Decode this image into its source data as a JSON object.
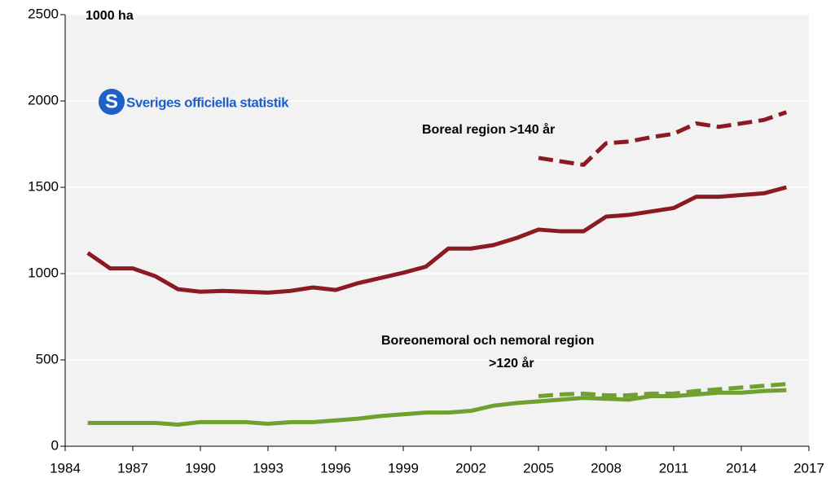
{
  "chart_data": {
    "type": "line",
    "unit_label": "1000 ha",
    "logo_text": "Sveriges officiella statistik",
    "x": [
      1985,
      1986,
      1987,
      1988,
      1989,
      1990,
      1991,
      1992,
      1993,
      1994,
      1995,
      1996,
      1997,
      1998,
      1999,
      2000,
      2001,
      2002,
      2003,
      2004,
      2005,
      2006,
      2007,
      2008,
      2009,
      2010,
      2011,
      2012,
      2013,
      2014,
      2015,
      2016
    ],
    "series": [
      {
        "color": "#8b1a24",
        "dash": false,
        "values": [
          1120,
          1030,
          1030,
          985,
          910,
          895,
          900,
          895,
          890,
          900,
          920,
          905,
          945,
          975,
          1005,
          1040,
          1145,
          1145,
          1165,
          1205,
          1255,
          1245,
          1245,
          1330,
          1340,
          1360,
          1380,
          1445,
          1445,
          1455,
          1465,
          1500
        ]
      },
      {
        "color": "#8b1a24",
        "dash": true,
        "values": [
          null,
          null,
          null,
          null,
          null,
          null,
          null,
          null,
          null,
          null,
          null,
          null,
          null,
          null,
          null,
          null,
          null,
          null,
          null,
          null,
          1670,
          1650,
          1630,
          1755,
          1765,
          1790,
          1810,
          1870,
          1850,
          1870,
          1890,
          1935
        ]
      },
      {
        "color": "#6fa030",
        "dash": false,
        "values": [
          135,
          135,
          135,
          135,
          125,
          140,
          140,
          140,
          130,
          140,
          140,
          150,
          160,
          175,
          185,
          195,
          195,
          205,
          235,
          250,
          260,
          270,
          280,
          275,
          270,
          290,
          290,
          300,
          310,
          310,
          320,
          325
        ]
      },
      {
        "color": "#6fa030",
        "dash": true,
        "values": [
          null,
          null,
          null,
          null,
          null,
          null,
          null,
          null,
          null,
          null,
          null,
          null,
          null,
          null,
          null,
          null,
          null,
          null,
          null,
          null,
          290,
          300,
          305,
          295,
          295,
          305,
          305,
          320,
          330,
          340,
          350,
          360
        ]
      }
    ],
    "annotations": [
      "Boreal region >140 år",
      "Boreonemoral och nemoral region",
      ">120 år"
    ],
    "xlim": [
      1984,
      2017
    ],
    "xticks": [
      1984,
      1987,
      1990,
      1993,
      1996,
      1999,
      2002,
      2005,
      2008,
      2011,
      2014,
      2017
    ],
    "ylim": [
      0,
      2500
    ],
    "yticks": [
      0,
      500,
      1000,
      1500,
      2000,
      2500
    ],
    "grid": true
  }
}
